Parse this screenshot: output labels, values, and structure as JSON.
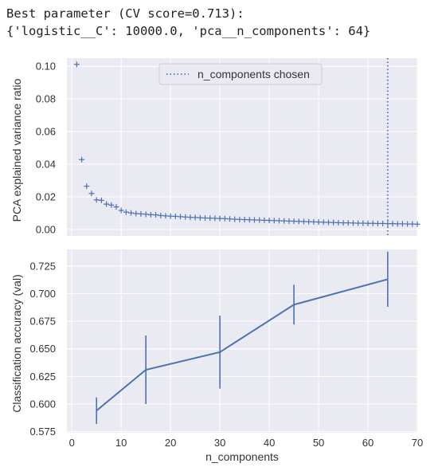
{
  "console": {
    "line1": "Best parameter (CV score=0.713):",
    "line2": "{'logistic__C': 10000.0, 'pca__n_components': 64}"
  },
  "colors": {
    "series": "#4c72b0",
    "axes_bg": "#eaeaf2",
    "grid": "#ffffff"
  },
  "chart_data": [
    {
      "type": "scatter",
      "marker": "+",
      "xlabel": "",
      "ylabel": "PCA explained variance ratio",
      "xlim": [
        -1,
        70
      ],
      "ylim": [
        -0.004,
        0.105
      ],
      "yticks": [
        0.0,
        0.02,
        0.04,
        0.06,
        0.08,
        0.1
      ],
      "ytick_labels": [
        "0.00",
        "0.02",
        "0.04",
        "0.06",
        "0.08",
        "0.10"
      ],
      "grid": true,
      "legend": {
        "position": "upper center",
        "entries": [
          "n_components chosen"
        ]
      },
      "vline": {
        "x": 64,
        "style": "dotted",
        "label": "n_components chosen"
      },
      "x": [
        1,
        2,
        3,
        4,
        5,
        6,
        7,
        8,
        9,
        10,
        11,
        12,
        13,
        14,
        15,
        16,
        17,
        18,
        19,
        20,
        21,
        22,
        23,
        24,
        25,
        26,
        27,
        28,
        29,
        30,
        31,
        32,
        33,
        34,
        35,
        36,
        37,
        38,
        39,
        40,
        41,
        42,
        43,
        44,
        45,
        46,
        47,
        48,
        49,
        50,
        51,
        52,
        53,
        54,
        55,
        56,
        57,
        58,
        59,
        60,
        61,
        62,
        63,
        64,
        65,
        66,
        67,
        68,
        69,
        70
      ],
      "y": [
        0.1012,
        0.0428,
        0.0265,
        0.022,
        0.0181,
        0.0178,
        0.0155,
        0.0149,
        0.0138,
        0.0116,
        0.0106,
        0.0101,
        0.0097,
        0.0095,
        0.0093,
        0.009,
        0.0089,
        0.0085,
        0.0083,
        0.0081,
        0.008,
        0.0078,
        0.0076,
        0.0074,
        0.0073,
        0.0071,
        0.007,
        0.0069,
        0.0068,
        0.0067,
        0.0066,
        0.0064,
        0.0062,
        0.0061,
        0.006,
        0.0059,
        0.0058,
        0.0057,
        0.0056,
        0.0055,
        0.0054,
        0.0053,
        0.0052,
        0.0051,
        0.005,
        0.0049,
        0.0048,
        0.0047,
        0.0046,
        0.0045,
        0.0044,
        0.0043,
        0.0042,
        0.0041,
        0.004,
        0.004,
        0.0039,
        0.0038,
        0.0038,
        0.0037,
        0.0037,
        0.0036,
        0.0036,
        0.0035,
        0.0035,
        0.0034,
        0.0034,
        0.0033,
        0.0033,
        0.0032
      ]
    },
    {
      "type": "line",
      "errorbars": true,
      "xlabel": "n_components",
      "ylabel": "Classification accuracy (val)",
      "xlim": [
        -1,
        70
      ],
      "ylim": [
        0.574,
        0.74
      ],
      "xticks": [
        0,
        10,
        20,
        30,
        40,
        50,
        60,
        70
      ],
      "xtick_labels": [
        "0",
        "10",
        "20",
        "30",
        "40",
        "50",
        "60",
        "70"
      ],
      "yticks": [
        0.575,
        0.6,
        0.625,
        0.65,
        0.675,
        0.7,
        0.725
      ],
      "ytick_labels": [
        "0.575",
        "0.600",
        "0.625",
        "0.650",
        "0.675",
        "0.700",
        "0.725"
      ],
      "grid": true,
      "x": [
        5,
        15,
        30,
        45,
        64
      ],
      "y": [
        0.594,
        0.631,
        0.647,
        0.69,
        0.713
      ],
      "yerr": [
        0.012,
        0.031,
        0.033,
        0.018,
        0.025
      ]
    }
  ]
}
